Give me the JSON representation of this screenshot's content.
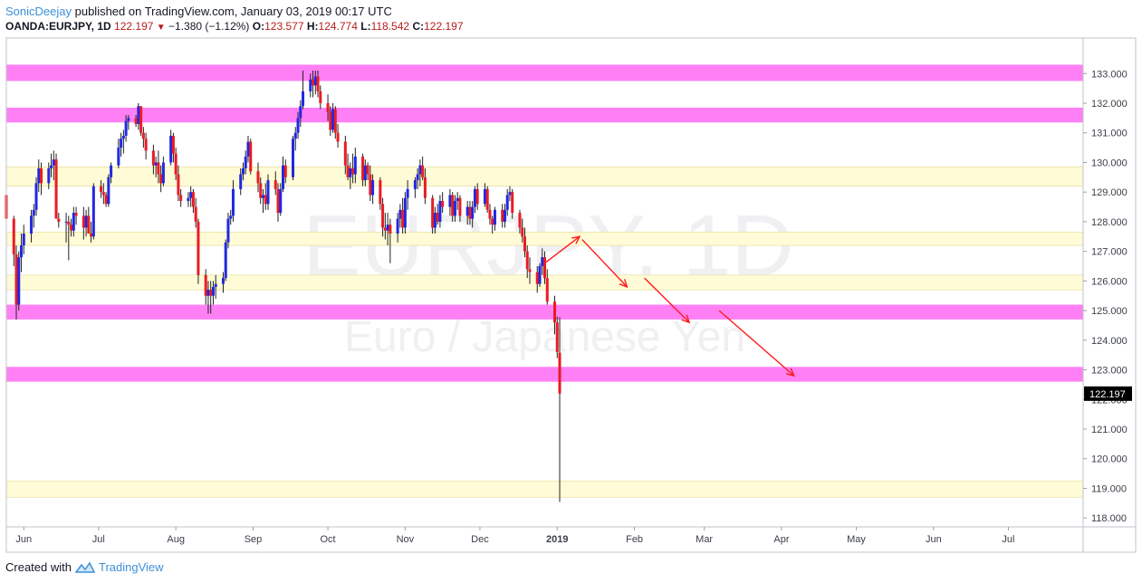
{
  "header": {
    "author": "SonicDeejay",
    "published_text": " published on TradingView.com, January 03, 2019 00:17 UTC",
    "symbol_line": "OANDA:EURJPY, 1D",
    "last": "122.197",
    "change": "−1.380 (−1.12%)",
    "o_label": "O:",
    "o_value": "123.577",
    "h_label": "H:",
    "h_value": "124.774",
    "l_label": "L:",
    "l_value": "118.542",
    "c_label": "C:",
    "c_value": "122.197"
  },
  "footer": {
    "created_with": "Created with",
    "brand": "TradingView"
  },
  "chart_data": {
    "type": "candlestick",
    "symbol": "EURJPY",
    "watermark_symbol": "EURJPY, 1D",
    "watermark_name": "Euro / Japanese Yen",
    "price_axis": {
      "ylim": [
        117.7,
        134.2
      ],
      "ticks": [
        "118.000",
        "119.000",
        "120.000",
        "121.000",
        "122.000",
        "123.000",
        "124.000",
        "125.000",
        "126.000",
        "127.000",
        "128.000",
        "129.000",
        "130.000",
        "131.000",
        "132.000",
        "133.000"
      ]
    },
    "time_axis": {
      "xlim": [
        "2018-05-25",
        "2019-07-31"
      ],
      "ticks": [
        {
          "label": "Jun",
          "date": "2018-06-01",
          "bold": false
        },
        {
          "label": "Jul",
          "date": "2018-07-01",
          "bold": false
        },
        {
          "label": "Aug",
          "date": "2018-08-01",
          "bold": false
        },
        {
          "label": "Sep",
          "date": "2018-09-01",
          "bold": false
        },
        {
          "label": "Oct",
          "date": "2018-10-01",
          "bold": false
        },
        {
          "label": "Nov",
          "date": "2018-11-01",
          "bold": false
        },
        {
          "label": "Dec",
          "date": "2018-12-01",
          "bold": false
        },
        {
          "label": "2019",
          "date": "2019-01-01",
          "bold": true
        },
        {
          "label": "Feb",
          "date": "2019-02-01",
          "bold": false
        },
        {
          "label": "Mar",
          "date": "2019-03-01",
          "bold": false
        },
        {
          "label": "Apr",
          "date": "2019-04-01",
          "bold": false
        },
        {
          "label": "May",
          "date": "2019-05-01",
          "bold": false
        },
        {
          "label": "Jun",
          "date": "2019-06-01",
          "bold": false
        },
        {
          "label": "Jul",
          "date": "2019-07-01",
          "bold": false
        }
      ]
    },
    "last_price_label": "122.197",
    "last_price": 122.197,
    "zones": [
      {
        "kind": "resistance",
        "color": "#ff80f5",
        "from": 132.75,
        "to": 133.3
      },
      {
        "kind": "resistance",
        "color": "#ff80f5",
        "from": 131.35,
        "to": 131.85
      },
      {
        "kind": "zone",
        "color": "#fffbd6",
        "from": 129.2,
        "to": 129.85
      },
      {
        "kind": "zone",
        "color": "#fffbd6",
        "from": 127.2,
        "to": 127.65
      },
      {
        "kind": "zone",
        "color": "#fffbd6",
        "from": 125.7,
        "to": 126.2
      },
      {
        "kind": "support",
        "color": "#ff80f5",
        "from": 124.7,
        "to": 125.2
      },
      {
        "kind": "support",
        "color": "#ff80f5",
        "from": 122.6,
        "to": 123.1
      },
      {
        "kind": "zone",
        "color": "#fffbd6",
        "from": 118.7,
        "to": 119.25
      }
    ],
    "projection_arrows": [
      {
        "from": [
          "2018-12-27",
          126.6
        ],
        "to": [
          "2019-01-10",
          127.5
        ]
      },
      {
        "from": [
          "2019-01-11",
          127.4
        ],
        "to": [
          "2019-01-29",
          125.8
        ]
      },
      {
        "from": [
          "2019-02-05",
          126.1
        ],
        "to": [
          "2019-02-23",
          124.6
        ]
      },
      {
        "from": [
          "2019-03-07",
          125.0
        ],
        "to": [
          "2019-04-06",
          122.8
        ]
      }
    ],
    "up_color": "#2128e0",
    "down_color": "#e81c24",
    "candles": [
      [
        "2018-05-25",
        128.9,
        129.6,
        127.8,
        128.1
      ],
      [
        "2018-05-28",
        128.1,
        128.2,
        126.5,
        126.9
      ],
      [
        "2018-05-29",
        126.9,
        127.2,
        124.7,
        125.2
      ],
      [
        "2018-05-30",
        125.2,
        127.0,
        125.0,
        126.8
      ],
      [
        "2018-05-31",
        126.8,
        127.6,
        126.3,
        127.2
      ],
      [
        "2018-06-01",
        127.2,
        127.9,
        126.9,
        127.6
      ],
      [
        "2018-06-04",
        127.6,
        128.4,
        127.3,
        128.2
      ],
      [
        "2018-06-05",
        128.2,
        128.6,
        127.8,
        128.4
      ],
      [
        "2018-06-06",
        128.4,
        129.5,
        128.2,
        129.3
      ],
      [
        "2018-06-07",
        129.3,
        130.1,
        129.0,
        129.8
      ],
      [
        "2018-06-08",
        129.8,
        130.0,
        128.9,
        129.3
      ],
      [
        "2018-06-11",
        129.3,
        130.0,
        129.1,
        129.8
      ],
      [
        "2018-06-12",
        129.8,
        130.3,
        129.5,
        129.9
      ],
      [
        "2018-06-13",
        129.9,
        130.4,
        129.4,
        130.1
      ],
      [
        "2018-06-14",
        130.1,
        130.3,
        128.2,
        128.1
      ],
      [
        "2018-06-15",
        128.1,
        128.3,
        127.8,
        128.0
      ],
      [
        "2018-06-18",
        128.0,
        128.3,
        127.3,
        128.0
      ],
      [
        "2018-06-19",
        128.0,
        128.2,
        126.7,
        127.9
      ],
      [
        "2018-06-20",
        127.9,
        128.1,
        127.5,
        127.7
      ],
      [
        "2018-06-21",
        127.7,
        128.5,
        127.5,
        128.3
      ],
      [
        "2018-06-22",
        128.3,
        128.5,
        127.9,
        128.2
      ],
      [
        "2018-06-25",
        128.2,
        128.5,
        127.4,
        127.8
      ],
      [
        "2018-06-26",
        127.8,
        128.4,
        127.5,
        128.2
      ],
      [
        "2018-06-27",
        128.2,
        128.5,
        127.6,
        127.6
      ],
      [
        "2018-06-28",
        127.6,
        128.0,
        127.3,
        127.5
      ],
      [
        "2018-06-29",
        127.5,
        129.3,
        127.4,
        129.2
      ],
      [
        "2018-07-02",
        129.2,
        129.4,
        128.8,
        129.0
      ],
      [
        "2018-07-03",
        129.0,
        129.3,
        128.6,
        128.9
      ],
      [
        "2018-07-04",
        128.9,
        129.0,
        128.5,
        128.6
      ],
      [
        "2018-07-05",
        128.6,
        129.6,
        128.5,
        129.5
      ],
      [
        "2018-07-06",
        129.5,
        130.0,
        129.3,
        129.9
      ],
      [
        "2018-07-09",
        129.9,
        130.8,
        129.8,
        130.5
      ],
      [
        "2018-07-10",
        130.5,
        131.0,
        130.2,
        130.8
      ],
      [
        "2018-07-11",
        130.8,
        131.1,
        130.3,
        130.9
      ],
      [
        "2018-07-12",
        130.9,
        131.6,
        130.7,
        131.4
      ],
      [
        "2018-07-13",
        131.4,
        131.6,
        131.1,
        131.5
      ],
      [
        "2018-07-16",
        131.5,
        131.6,
        131.2,
        131.3
      ],
      [
        "2018-07-17",
        131.3,
        132.0,
        131.1,
        131.9
      ],
      [
        "2018-07-18",
        131.9,
        131.8,
        130.9,
        131.0
      ],
      [
        "2018-07-19",
        131.0,
        131.2,
        130.5,
        130.8
      ],
      [
        "2018-07-20",
        130.8,
        131.0,
        130.1,
        130.4
      ],
      [
        "2018-07-23",
        130.4,
        130.6,
        129.6,
        129.9
      ],
      [
        "2018-07-24",
        129.9,
        130.2,
        129.5,
        130.0
      ],
      [
        "2018-07-25",
        130.0,
        130.4,
        129.3,
        129.6
      ],
      [
        "2018-07-26",
        129.6,
        129.9,
        129.0,
        129.3
      ],
      [
        "2018-07-27",
        129.3,
        130.2,
        129.2,
        130.0
      ],
      [
        "2018-07-30",
        130.0,
        131.1,
        129.9,
        130.9
      ],
      [
        "2018-07-31",
        130.9,
        131.0,
        130.0,
        130.3
      ],
      [
        "2018-08-01",
        130.3,
        130.5,
        129.4,
        129.6
      ],
      [
        "2018-08-02",
        129.6,
        129.9,
        128.7,
        128.9
      ],
      [
        "2018-08-03",
        128.9,
        129.1,
        128.5,
        128.7
      ],
      [
        "2018-08-06",
        128.7,
        129.0,
        128.5,
        128.8
      ],
      [
        "2018-08-07",
        128.8,
        129.2,
        128.5,
        129.0
      ],
      [
        "2018-08-08",
        129.0,
        129.1,
        128.3,
        128.5
      ],
      [
        "2018-08-09",
        128.5,
        128.8,
        127.8,
        128.0
      ],
      [
        "2018-08-10",
        128.0,
        128.1,
        125.9,
        126.2
      ],
      [
        "2018-08-13",
        126.2,
        126.4,
        125.2,
        125.5
      ],
      [
        "2018-08-14",
        125.5,
        126.0,
        124.9,
        125.7
      ],
      [
        "2018-08-15",
        125.7,
        126.0,
        124.9,
        125.5
      ],
      [
        "2018-08-16",
        125.5,
        126.0,
        125.2,
        125.8
      ],
      [
        "2018-08-17",
        125.8,
        126.2,
        125.4,
        125.9
      ],
      [
        "2018-08-20",
        125.9,
        126.3,
        125.6,
        126.1
      ],
      [
        "2018-08-21",
        126.1,
        127.4,
        126.0,
        127.3
      ],
      [
        "2018-08-22",
        127.3,
        128.3,
        127.1,
        128.1
      ],
      [
        "2018-08-23",
        128.1,
        128.4,
        127.9,
        128.2
      ],
      [
        "2018-08-24",
        128.2,
        129.4,
        128.0,
        129.1
      ],
      [
        "2018-08-27",
        129.1,
        129.8,
        128.9,
        129.6
      ],
      [
        "2018-08-28",
        129.6,
        130.0,
        129.4,
        129.8
      ],
      [
        "2018-08-29",
        129.8,
        130.4,
        129.6,
        130.2
      ],
      [
        "2018-08-30",
        130.2,
        130.9,
        130.0,
        130.7
      ],
      [
        "2018-08-31",
        130.7,
        130.8,
        129.6,
        129.7
      ],
      [
        "2018-09-03",
        129.7,
        130.0,
        129.0,
        129.3
      ],
      [
        "2018-09-04",
        129.3,
        129.5,
        128.6,
        128.8
      ],
      [
        "2018-09-05",
        128.8,
        129.1,
        128.3,
        128.9
      ],
      [
        "2018-09-06",
        128.9,
        129.3,
        128.4,
        128.6
      ],
      [
        "2018-09-07",
        128.6,
        129.6,
        128.4,
        129.4
      ],
      [
        "2018-09-10",
        129.4,
        129.7,
        128.9,
        129.1
      ],
      [
        "2018-09-11",
        129.1,
        129.3,
        128.0,
        128.3
      ],
      [
        "2018-09-12",
        128.3,
        129.3,
        128.2,
        129.1
      ],
      [
        "2018-09-13",
        129.1,
        130.2,
        129.0,
        129.9
      ],
      [
        "2018-09-14",
        129.9,
        130.1,
        129.3,
        129.5
      ],
      [
        "2018-09-17",
        129.5,
        130.9,
        129.4,
        130.8
      ],
      [
        "2018-09-18",
        130.8,
        131.2,
        130.4,
        131.0
      ],
      [
        "2018-09-19",
        131.0,
        131.7,
        130.8,
        131.5
      ],
      [
        "2018-09-20",
        131.5,
        132.1,
        131.2,
        131.9
      ],
      [
        "2018-09-21",
        131.9,
        133.1,
        131.8,
        132.4
      ],
      [
        "2018-09-24",
        132.4,
        133.0,
        132.2,
        132.8
      ],
      [
        "2018-09-25",
        132.8,
        133.1,
        132.2,
        132.6
      ],
      [
        "2018-09-26",
        132.6,
        133.1,
        132.3,
        132.9
      ],
      [
        "2018-09-27",
        132.9,
        133.1,
        132.2,
        132.4
      ],
      [
        "2018-09-28",
        132.4,
        132.6,
        131.8,
        132.0
      ],
      [
        "2018-10-01",
        132.0,
        132.3,
        131.4,
        131.7
      ],
      [
        "2018-10-02",
        131.7,
        131.9,
        130.9,
        131.1
      ],
      [
        "2018-10-03",
        131.1,
        132.0,
        131.0,
        131.8
      ],
      [
        "2018-10-04",
        131.8,
        131.9,
        130.8,
        131.0
      ],
      [
        "2018-10-05",
        131.0,
        131.3,
        130.5,
        130.7
      ],
      [
        "2018-10-08",
        130.7,
        130.9,
        129.6,
        129.9
      ],
      [
        "2018-10-09",
        129.9,
        130.3,
        129.4,
        129.5
      ],
      [
        "2018-10-10",
        129.5,
        130.0,
        129.1,
        129.8
      ],
      [
        "2018-10-11",
        129.8,
        130.3,
        129.3,
        129.6
      ],
      [
        "2018-10-12",
        129.6,
        130.5,
        129.3,
        130.2
      ],
      [
        "2018-10-15",
        130.2,
        130.3,
        129.2,
        129.4
      ],
      [
        "2018-10-16",
        129.4,
        130.1,
        129.2,
        129.9
      ],
      [
        "2018-10-17",
        129.9,
        130.0,
        129.4,
        129.6
      ],
      [
        "2018-10-18",
        129.6,
        129.9,
        128.7,
        128.9
      ],
      [
        "2018-10-19",
        128.9,
        129.6,
        128.6,
        129.4
      ],
      [
        "2018-10-22",
        129.4,
        129.5,
        128.4,
        128.6
      ],
      [
        "2018-10-23",
        128.6,
        128.8,
        127.5,
        127.8
      ],
      [
        "2018-10-24",
        127.8,
        128.3,
        127.4,
        127.7
      ],
      [
        "2018-10-25",
        127.7,
        128.3,
        127.2,
        127.9
      ],
      [
        "2018-10-26",
        127.9,
        128.1,
        126.6,
        127.6
      ],
      [
        "2018-10-29",
        127.6,
        128.3,
        127.3,
        128.1
      ],
      [
        "2018-10-30",
        128.1,
        128.6,
        127.8,
        128.4
      ],
      [
        "2018-10-31",
        128.4,
        128.8,
        127.6,
        127.8
      ],
      [
        "2018-11-01",
        127.8,
        129.0,
        127.6,
        128.8
      ],
      [
        "2018-11-02",
        128.8,
        129.4,
        128.4,
        129.1
      ],
      [
        "2018-11-05",
        129.1,
        129.5,
        128.8,
        129.4
      ],
      [
        "2018-11-06",
        129.4,
        129.8,
        129.1,
        129.6
      ],
      [
        "2018-11-07",
        129.6,
        130.1,
        129.2,
        129.9
      ],
      [
        "2018-11-08",
        129.9,
        130.2,
        129.4,
        129.5
      ],
      [
        "2018-11-09",
        129.5,
        129.8,
        128.6,
        128.8
      ],
      [
        "2018-11-12",
        128.8,
        128.9,
        127.6,
        127.8
      ],
      [
        "2018-11-13",
        127.8,
        128.5,
        127.6,
        128.3
      ],
      [
        "2018-11-14",
        128.3,
        128.6,
        127.9,
        128.0
      ],
      [
        "2018-11-15",
        128.0,
        128.9,
        127.8,
        128.7
      ],
      [
        "2018-11-16",
        128.7,
        129.0,
        128.3,
        128.5
      ],
      [
        "2018-11-19",
        128.5,
        129.1,
        128.2,
        128.9
      ],
      [
        "2018-11-20",
        128.9,
        129.0,
        128.0,
        128.2
      ],
      [
        "2018-11-21",
        128.2,
        128.9,
        128.0,
        128.7
      ],
      [
        "2018-11-22",
        128.7,
        129.0,
        128.4,
        128.8
      ],
      [
        "2018-11-23",
        128.8,
        128.9,
        128.0,
        128.2
      ],
      [
        "2018-11-26",
        128.2,
        128.7,
        127.9,
        128.5
      ],
      [
        "2018-11-27",
        128.5,
        128.7,
        127.9,
        128.1
      ],
      [
        "2018-11-28",
        128.1,
        128.7,
        127.8,
        128.5
      ],
      [
        "2018-11-29",
        128.5,
        129.2,
        128.3,
        129.1
      ],
      [
        "2018-11-30",
        129.1,
        129.3,
        128.4,
        128.6
      ],
      [
        "2018-12-03",
        128.6,
        129.3,
        128.5,
        129.1
      ],
      [
        "2018-12-04",
        129.1,
        129.2,
        128.3,
        128.4
      ],
      [
        "2018-12-05",
        128.4,
        128.6,
        127.9,
        128.1
      ],
      [
        "2018-12-06",
        128.1,
        128.2,
        127.6,
        127.9
      ],
      [
        "2018-12-07",
        127.9,
        128.5,
        127.7,
        128.4
      ],
      [
        "2018-12-10",
        128.4,
        128.6,
        127.8,
        128.0
      ],
      [
        "2018-12-11",
        128.0,
        128.6,
        127.8,
        128.4
      ],
      [
        "2018-12-12",
        128.4,
        129.1,
        128.2,
        128.9
      ],
      [
        "2018-12-13",
        128.9,
        129.2,
        128.7,
        129.0
      ],
      [
        "2018-12-14",
        129.0,
        129.1,
        128.1,
        128.3
      ],
      [
        "2018-12-17",
        128.3,
        128.4,
        127.6,
        127.8
      ],
      [
        "2018-12-18",
        127.8,
        128.1,
        127.3,
        127.5
      ],
      [
        "2018-12-19",
        127.5,
        127.8,
        126.8,
        127.0
      ],
      [
        "2018-12-20",
        127.0,
        127.2,
        126.1,
        126.4
      ],
      [
        "2018-12-21",
        126.4,
        126.8,
        125.9,
        126.3
      ],
      [
        "2018-12-24",
        126.3,
        126.5,
        125.6,
        125.9
      ],
      [
        "2018-12-25",
        125.9,
        126.6,
        125.8,
        126.5
      ],
      [
        "2018-12-26",
        126.5,
        127.1,
        126.2,
        126.8
      ],
      [
        "2018-12-27",
        126.8,
        127.0,
        125.9,
        126.1
      ],
      [
        "2018-12-28",
        126.1,
        126.4,
        125.2,
        125.3
      ],
      [
        "2018-12-31",
        125.3,
        125.5,
        124.2,
        124.6
      ],
      [
        "2019-01-01",
        124.6,
        124.8,
        123.4,
        123.6
      ],
      [
        "2019-01-02",
        123.577,
        124.774,
        118.542,
        122.197
      ]
    ]
  }
}
